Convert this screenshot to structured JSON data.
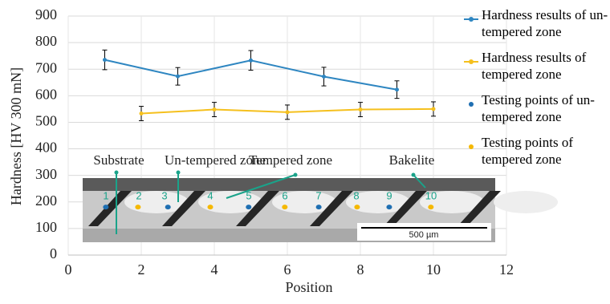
{
  "chart_data": {
    "type": "line",
    "xlabel": "Position",
    "ylabel": "Hardness [HV 300 mN]",
    "xlim": [
      0,
      12
    ],
    "xticks": [
      0,
      2,
      4,
      6,
      8,
      10,
      12
    ],
    "ylim": [
      0,
      900
    ],
    "yticks": [
      0,
      100,
      200,
      300,
      400,
      500,
      600,
      700,
      800,
      900
    ],
    "grid": true,
    "legend": "right",
    "series": [
      {
        "name": "Hardness results of un-tempered zone",
        "type": "line",
        "color": "#2e86c1",
        "x": [
          1,
          3,
          5,
          7,
          9
        ],
        "values": [
          735,
          673,
          733,
          672,
          623
        ],
        "errors": [
          37,
          33,
          37,
          35,
          33
        ]
      },
      {
        "name": "Hardness results of tempered zone",
        "type": "line",
        "color": "#f5c01e",
        "x": [
          2,
          4,
          6,
          8,
          10
        ],
        "values": [
          533,
          548,
          538,
          548,
          550
        ],
        "errors": [
          27,
          27,
          27,
          27,
          27
        ]
      },
      {
        "name": "Testing points of un-tempered zone",
        "type": "scatter",
        "color": "#1f6fb2",
        "x": [
          1.03,
          2.73,
          4.94,
          6.86,
          8.79
        ],
        "values": [
          181,
          181,
          181,
          181,
          181
        ]
      },
      {
        "name": "Testing points of tempered zone",
        "type": "scatter",
        "color": "#f5b800",
        "x": [
          1.91,
          3.89,
          5.93,
          7.91,
          9.93
        ],
        "values": [
          181,
          181,
          181,
          181,
          181
        ]
      }
    ],
    "point_labels": [
      "1",
      "2",
      "3",
      "4",
      "5",
      "6",
      "7",
      "8",
      "9",
      "10"
    ],
    "zone_labels": [
      "Substrate",
      "Un-tempered zone",
      "Tempered zone",
      "Bakelite"
    ],
    "scale_bar": "500 µm"
  }
}
